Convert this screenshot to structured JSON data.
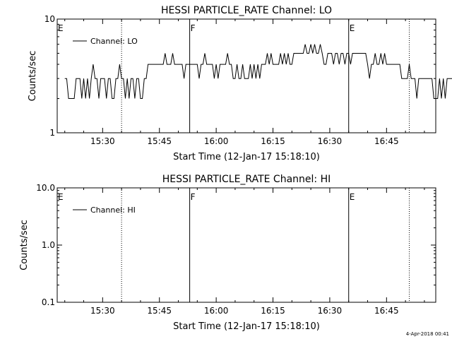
{
  "chart_data": [
    {
      "type": "line",
      "title": "HESSI PARTICLE_RATE Channel: LO",
      "xlabel": "Start Time (12-Jan-17 15:18:10)",
      "ylabel": "Counts/sec",
      "xlim": [
        "15:18",
        "16:58"
      ],
      "ylim": [
        1,
        10
      ],
      "yscale": "log",
      "grid": false,
      "legend_position": "top-left",
      "x_ticks": [
        "15:30",
        "15:45",
        "16:00",
        "16:15",
        "16:30",
        "16:45"
      ],
      "y_ticks": [
        "1",
        "10"
      ],
      "annotations": [
        {
          "label": "E",
          "x": "15:18",
          "style": "none"
        },
        {
          "label": "",
          "x": "15:35",
          "style": "dotted"
        },
        {
          "label": "F",
          "x": "15:53",
          "style": "solid"
        },
        {
          "label": "E",
          "x": "16:35",
          "style": "solid"
        },
        {
          "label": "",
          "x": "16:51",
          "style": "dotted"
        }
      ],
      "series": [
        {
          "name": "Channel: LO",
          "x_start": "15:20",
          "x_step_min": 0.5,
          "values": [
            3,
            3,
            2,
            2,
            2,
            2,
            3,
            3,
            3,
            2,
            3,
            2,
            3,
            2,
            3,
            4,
            3,
            3,
            2,
            3,
            3,
            3,
            2,
            3,
            3,
            2,
            2,
            3,
            3,
            4,
            3,
            3,
            2,
            3,
            2,
            3,
            3,
            2,
            3,
            3,
            2,
            2,
            3,
            3,
            4,
            4,
            4,
            4,
            4,
            4,
            4,
            4,
            4,
            5,
            4,
            4,
            4,
            5,
            4,
            4,
            4,
            4,
            4,
            3,
            4,
            4,
            4,
            4,
            4,
            4,
            4,
            3,
            4,
            4,
            5,
            4,
            4,
            4,
            4,
            3,
            4,
            3,
            4,
            4,
            4,
            4,
            5,
            4,
            4,
            3,
            3,
            4,
            3,
            3,
            4,
            3,
            3,
            3,
            4,
            3,
            4,
            3,
            4,
            3,
            4,
            4,
            4,
            5,
            4,
            5,
            4,
            4,
            4,
            4,
            5,
            4,
            5,
            4,
            5,
            4,
            4,
            5,
            5,
            5,
            5,
            5,
            5,
            6,
            5,
            5,
            6,
            5,
            6,
            5,
            5,
            6,
            5,
            4,
            4,
            5,
            5,
            5,
            4,
            5,
            5,
            4,
            5,
            5,
            4,
            5,
            5,
            4,
            5,
            5,
            5,
            5,
            5,
            5,
            5,
            5,
            4,
            3,
            4,
            4,
            5,
            4,
            4,
            5,
            4,
            5,
            4,
            4,
            4,
            4,
            4,
            4,
            4,
            4,
            3,
            3,
            3,
            3,
            4,
            3,
            3,
            3,
            2,
            3,
            3,
            3,
            3,
            3,
            3,
            3,
            3,
            2,
            2,
            2,
            3,
            2,
            3,
            2,
            3,
            3,
            3,
            3,
            3,
            3,
            3,
            3,
            2,
            2,
            2,
            3,
            3,
            3,
            3,
            3,
            3,
            3,
            3,
            3,
            2,
            3,
            2,
            3
          ]
        }
      ]
    },
    {
      "type": "line",
      "title": "HESSI PARTICLE_RATE Channel: HI",
      "xlabel": "Start Time (12-Jan-17 15:18:10)",
      "ylabel": "Counts/sec",
      "xlim": [
        "15:18",
        "16:58"
      ],
      "ylim": [
        0.1,
        10
      ],
      "yscale": "log",
      "grid": false,
      "legend_position": "top-left",
      "x_ticks": [
        "15:30",
        "15:45",
        "16:00",
        "16:15",
        "16:30",
        "16:45"
      ],
      "y_ticks": [
        "0.1",
        "1.0",
        "10.0"
      ],
      "annotations": [
        {
          "label": "E",
          "x": "15:18",
          "style": "none"
        },
        {
          "label": "",
          "x": "15:35",
          "style": "dotted"
        },
        {
          "label": "F",
          "x": "15:53",
          "style": "solid"
        },
        {
          "label": "E",
          "x": "16:35",
          "style": "solid"
        },
        {
          "label": "",
          "x": "16:51",
          "style": "dotted"
        }
      ],
      "series": [
        {
          "name": "Channel: HI",
          "values": []
        }
      ]
    }
  ],
  "footer": {
    "timestamp": "4-Apr-2018 00:41"
  }
}
